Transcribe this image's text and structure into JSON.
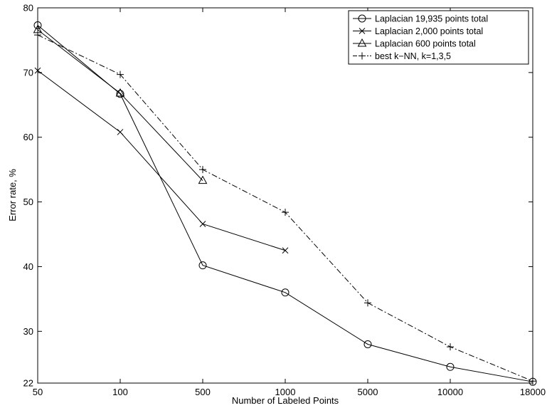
{
  "chart_data": {
    "type": "line",
    "title": "",
    "xlabel": "Number of Labeled Points",
    "ylabel": "Error rate, %",
    "categories": [
      "50",
      "100",
      "500",
      "1000",
      "5000",
      "10000",
      "18000"
    ],
    "y_ticks": [
      "22",
      "30",
      "40",
      "50",
      "60",
      "70",
      "80"
    ],
    "ylim": [
      22,
      80
    ],
    "grid": false,
    "legend_position": "top-right",
    "series": [
      {
        "name": "Laplacian 19,935 points total",
        "marker": "circle",
        "line_style": "solid",
        "values": [
          77.3,
          66.7,
          40.2,
          36.0,
          28.0,
          24.5,
          22.2
        ]
      },
      {
        "name": "Laplacian 2,000 points total",
        "marker": "x",
        "line_style": "solid",
        "values": [
          70.3,
          60.8,
          46.6,
          42.5,
          null,
          null,
          null
        ]
      },
      {
        "name": "Laplacian 600 points total",
        "marker": "triangle",
        "line_style": "solid",
        "values": [
          76.6,
          66.8,
          53.3,
          null,
          null,
          null,
          null
        ]
      },
      {
        "name": "best k−NN, k=1,3,5",
        "marker": "plus",
        "line_style": "dashdot",
        "values": [
          75.8,
          69.7,
          55.0,
          48.4,
          34.4,
          27.6,
          22.3
        ]
      }
    ]
  }
}
